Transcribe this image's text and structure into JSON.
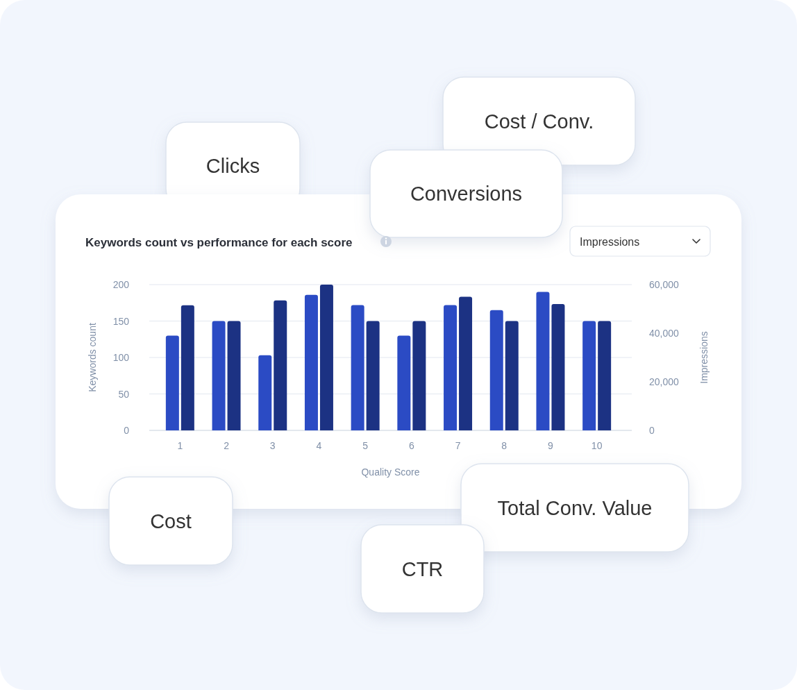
{
  "chart_data": {
    "type": "bar",
    "title": "Keywords count vs performance for each score",
    "xlabel": "Quality Score",
    "ylabel": "Keywords count",
    "y2label": "Impressions",
    "categories": [
      "1",
      "2",
      "3",
      "4",
      "5",
      "6",
      "7",
      "8",
      "9",
      "10"
    ],
    "series": [
      {
        "color": "#2b4bc4",
        "values": [
          130,
          150,
          103,
          186,
          172,
          130,
          172,
          165,
          190,
          150
        ]
      },
      {
        "color": "#1c3283",
        "axis": "y2",
        "values": [
          51500,
          45000,
          53500,
          60000,
          45000,
          45000,
          55000,
          45000,
          52000,
          45000
        ]
      }
    ],
    "ylim": [
      0,
      200
    ],
    "yticks": [
      0,
      50,
      100,
      150,
      200
    ],
    "y2lim": [
      0,
      60000
    ],
    "y2ticks": [
      {
        "value": 0,
        "label": "0"
      },
      {
        "value": 20000,
        "label": "20,000"
      },
      {
        "value": 40000,
        "label": "40,000"
      },
      {
        "value": 60000,
        "label": "60,000"
      }
    ],
    "grid": "y",
    "annotations": [
      "Impressions",
      "Clicks",
      "Cost / Conv.",
      "Conversions",
      "Cost",
      "Total Conv. Value",
      "CTR"
    ]
  }
}
